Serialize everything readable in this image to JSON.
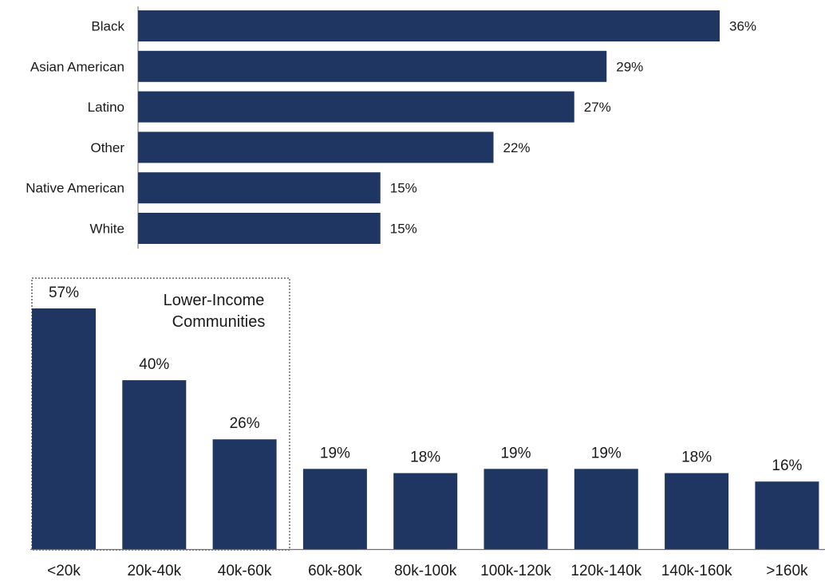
{
  "colors": {
    "bar": "#1f3662",
    "axis": "#6e6e6e",
    "text": "#1a1a1a",
    "annotation_border": "#444444"
  },
  "chart_data": [
    {
      "type": "bar",
      "orientation": "horizontal",
      "categories": [
        "Black",
        "Asian American",
        "Latino",
        "Other",
        "Native American",
        "White"
      ],
      "values": [
        36,
        29,
        27,
        22,
        15,
        15
      ],
      "value_labels": [
        "36%",
        "29%",
        "27%",
        "22%",
        "15%",
        "15%"
      ],
      "unit": "%",
      "xlim": [
        0,
        36
      ],
      "grid": false,
      "legend": "none"
    },
    {
      "type": "bar",
      "orientation": "vertical",
      "categories": [
        "<20k",
        "20k-40k",
        "40k-60k",
        "60k-80k",
        "80k-100k",
        "100k-120k",
        "120k-140k",
        "140k-160k",
        ">160k"
      ],
      "values": [
        57,
        40,
        26,
        19,
        18,
        19,
        19,
        18,
        16
      ],
      "value_labels": [
        "57%",
        "40%",
        "26%",
        "19%",
        "18%",
        "19%",
        "19%",
        "18%",
        "16%"
      ],
      "unit": "%",
      "ylim": [
        0,
        57
      ],
      "grid": false,
      "legend": "none",
      "annotation": {
        "lines": [
          "Lower-Income",
          "Communities"
        ],
        "covers_categories": [
          "<20k",
          "20k-40k",
          "40k-60k"
        ],
        "style": "dotted-box"
      }
    }
  ]
}
